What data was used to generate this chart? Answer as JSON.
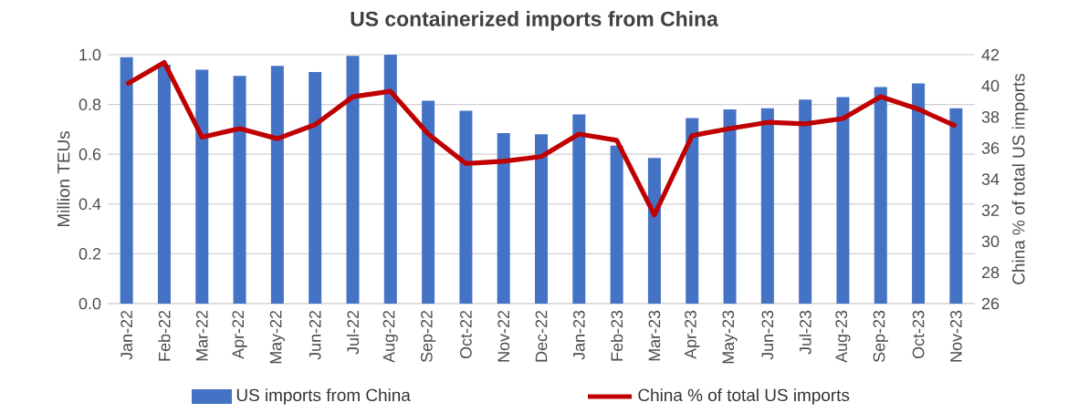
{
  "chart_data": {
    "type": "bar",
    "title": "US containerized imports from China",
    "categories": [
      "Jan-22",
      "Feb-22",
      "Mar-22",
      "Apr-22",
      "May-22",
      "Jun-22",
      "Jul-22",
      "Aug-22",
      "Sep-22",
      "Oct-22",
      "Nov-22",
      "Dec-22",
      "Jan-23",
      "Feb-23",
      "Mar-23",
      "Apr-23",
      "May-23",
      "Jun-23",
      "Jul-23",
      "Aug-23",
      "Sep-23",
      "Oct-23",
      "Nov-23"
    ],
    "series": [
      {
        "name": "US imports from China",
        "color": "#4472c4",
        "values": [
          0.99,
          0.96,
          0.94,
          0.915,
          0.955,
          0.93,
          0.995,
          1.0,
          0.815,
          0.775,
          0.685,
          0.68,
          0.76,
          0.635,
          0.585,
          0.745,
          0.78,
          0.785,
          0.82,
          0.83,
          0.87,
          0.885,
          0.785
        ]
      },
      {
        "name": "China % of total US imports",
        "type": "line",
        "axis": "y2",
        "color": "#c00000",
        "values": [
          40.1,
          41.5,
          36.7,
          37.25,
          36.6,
          37.5,
          39.3,
          39.65,
          36.9,
          35.0,
          35.15,
          35.45,
          36.9,
          36.5,
          31.7,
          36.8,
          37.25,
          37.65,
          37.55,
          37.9,
          39.3,
          38.5,
          37.4
        ]
      }
    ],
    "ylabel": "Million TEUs",
    "y2label": "China % of total US imports",
    "ylim": [
      0,
      1.0
    ],
    "yticks": [
      {
        "value": 0,
        "label": "0.0"
      },
      0.2,
      0.4,
      0.6,
      0.8,
      {
        "value": 1.0,
        "label": "1.0"
      }
    ],
    "y2lim": [
      26,
      42
    ],
    "y2ticks": [
      26,
      28,
      30,
      32,
      34,
      36,
      38,
      40,
      42
    ],
    "grid": "y",
    "legend": "bottom"
  }
}
